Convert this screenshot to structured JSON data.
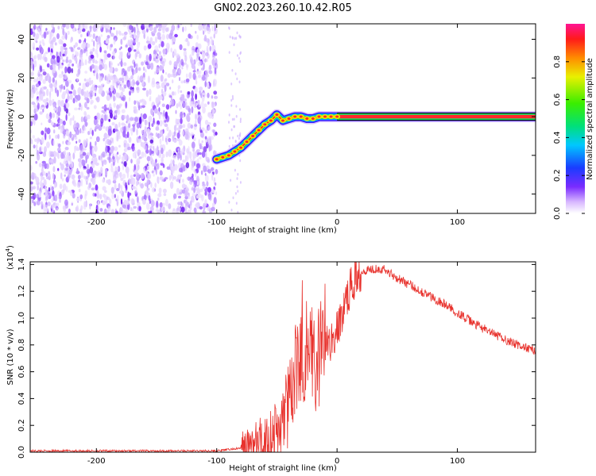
{
  "title": "GN02.2023.260.10.42.R05",
  "chart_data": [
    {
      "type": "heatmap",
      "xlabel": "Height of straight line (km)",
      "ylabel": "Frequency (Hz)",
      "xlim": [
        -255,
        165
      ],
      "ylim": [
        -50,
        48
      ],
      "xticks": [
        -200,
        -100,
        0,
        100
      ],
      "yticks": [
        -40,
        -20,
        0,
        20,
        40
      ],
      "colorbar": {
        "label": "Normalized spectral amplitude",
        "range": [
          0,
          1
        ],
        "ticks": [
          "0.0",
          "0.2",
          "0.4",
          "0.6",
          "0.8"
        ]
      },
      "noise_region": {
        "x_end": -100,
        "sparse_x": [
          -90,
          -80
        ]
      },
      "signal_trace": [
        {
          "x": -100,
          "y": -22
        },
        {
          "x": -95,
          "y": -21
        },
        {
          "x": -90,
          "y": -20
        },
        {
          "x": -85,
          "y": -18
        },
        {
          "x": -80,
          "y": -16
        },
        {
          "x": -75,
          "y": -13
        },
        {
          "x": -70,
          "y": -10
        },
        {
          "x": -65,
          "y": -7
        },
        {
          "x": -60,
          "y": -4
        },
        {
          "x": -55,
          "y": -2
        },
        {
          "x": -50,
          "y": 1
        },
        {
          "x": -45,
          "y": -2
        },
        {
          "x": -40,
          "y": -1
        },
        {
          "x": -35,
          "y": 0
        },
        {
          "x": -30,
          "y": 0
        },
        {
          "x": -25,
          "y": -1
        },
        {
          "x": -20,
          "y": -1
        },
        {
          "x": -15,
          "y": 0
        },
        {
          "x": -10,
          "y": 0
        },
        {
          "x": -5,
          "y": 0
        },
        {
          "x": 0,
          "y": 0
        },
        {
          "x": 165,
          "y": 0
        }
      ]
    },
    {
      "type": "line",
      "xlabel": "Height of straight line (km)",
      "ylabel": "SNR (10 * v/v)",
      "yscale_label": "(x10",
      "yscale_exp": "4",
      "yscale_close": ")",
      "xlim": [
        -255,
        165
      ],
      "ylim": [
        0,
        1.42
      ],
      "xticks": [
        -200,
        -100,
        0,
        100
      ],
      "yticks": [
        "0.0",
        "0.2",
        "0.4",
        "0.6",
        "0.8",
        "1.0",
        "1.2",
        "1.4"
      ],
      "color": "#e8332e",
      "series": [
        {
          "x": [
            -255,
            -200,
            -150,
            -100,
            -90,
            -80,
            -70,
            -60,
            -55,
            -50,
            -45,
            -40,
            -38,
            -35,
            -30,
            -25,
            -20,
            -15,
            -10,
            -5,
            0,
            5,
            10,
            15,
            20,
            25,
            30,
            35,
            40,
            50,
            60,
            70,
            80,
            90,
            100,
            110,
            120,
            130,
            140,
            150,
            160,
            165
          ],
          "values": [
            0.01,
            0.01,
            0.01,
            0.01,
            0.02,
            0.03,
            0.05,
            0.08,
            0.12,
            0.15,
            0.2,
            0.35,
            0.45,
            0.6,
            0.7,
            0.8,
            0.75,
            0.72,
            0.8,
            0.82,
            0.9,
            1.05,
            1.2,
            1.3,
            1.35,
            1.36,
            1.37,
            1.37,
            1.36,
            1.3,
            1.25,
            1.2,
            1.15,
            1.1,
            1.04,
            0.98,
            0.93,
            0.88,
            0.84,
            0.8,
            0.77,
            0.76
          ]
        }
      ]
    }
  ]
}
